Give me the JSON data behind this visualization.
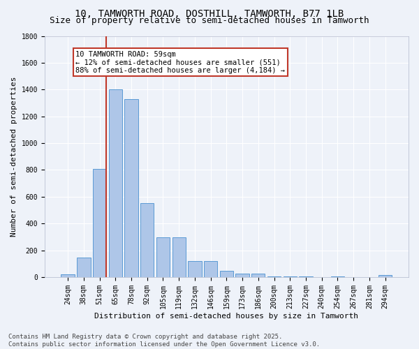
{
  "title1": "10, TAMWORTH ROAD, DOSTHILL, TAMWORTH, B77 1LB",
  "title2": "Size of property relative to semi-detached houses in Tamworth",
  "xlabel": "Distribution of semi-detached houses by size in Tamworth",
  "ylabel": "Number of semi-detached properties",
  "categories": [
    "24sqm",
    "38sqm",
    "51sqm",
    "65sqm",
    "78sqm",
    "92sqm",
    "105sqm",
    "119sqm",
    "132sqm",
    "146sqm",
    "159sqm",
    "173sqm",
    "186sqm",
    "200sqm",
    "213sqm",
    "227sqm",
    "240sqm",
    "254sqm",
    "267sqm",
    "281sqm",
    "294sqm"
  ],
  "values": [
    20,
    145,
    810,
    1400,
    1330,
    550,
    295,
    295,
    120,
    120,
    48,
    25,
    25,
    5,
    5,
    5,
    0,
    5,
    0,
    0,
    15
  ],
  "bar_color": "#aec6e8",
  "bar_edge_color": "#5b9bd5",
  "vline_color": "#c0392b",
  "annotation_text": "10 TAMWORTH ROAD: 59sqm\n← 12% of semi-detached houses are smaller (551)\n88% of semi-detached houses are larger (4,184) →",
  "annotation_box_color": "#ffffff",
  "annotation_box_edge": "#c0392b",
  "ylim": [
    0,
    1800
  ],
  "yticks": [
    0,
    200,
    400,
    600,
    800,
    1000,
    1200,
    1400,
    1600,
    1800
  ],
  "footer": "Contains HM Land Registry data © Crown copyright and database right 2025.\nContains public sector information licensed under the Open Government Licence v3.0.",
  "bg_color": "#eef2f9",
  "grid_color": "#ffffff",
  "title_fontsize": 10,
  "subtitle_fontsize": 9,
  "axis_fontsize": 8,
  "tick_fontsize": 7,
  "footer_fontsize": 6.5,
  "annotation_fontsize": 7.5
}
